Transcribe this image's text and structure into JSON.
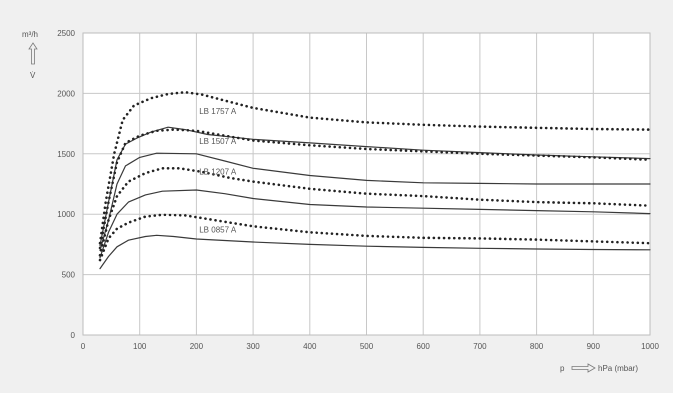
{
  "chart_data": {
    "type": "line",
    "xlim": [
      0,
      1000
    ],
    "ylim": [
      0,
      2500
    ],
    "x_ticks": [
      0,
      100,
      200,
      300,
      400,
      500,
      600,
      700,
      800,
      900,
      1000
    ],
    "y_ticks": [
      0,
      500,
      1000,
      1500,
      2000,
      2500
    ],
    "y_unit_label": "m³/h",
    "y_symbol": "V̇",
    "x_symbol": "p",
    "x_unit_label": "hPa (mbar)",
    "grid": true,
    "colors": {
      "solid": "#3a3a3a",
      "dotted": "#222222",
      "grid": "#c8c8c8",
      "plot_bg": "#ffffff"
    },
    "series": [
      {
        "name": "LB 1757 A",
        "style": "dotted",
        "points": [
          [
            30,
            760
          ],
          [
            40,
            1100
          ],
          [
            55,
            1500
          ],
          [
            70,
            1780
          ],
          [
            90,
            1900
          ],
          [
            120,
            1960
          ],
          [
            150,
            1995
          ],
          [
            180,
            2010
          ],
          [
            210,
            1990
          ],
          [
            250,
            1940
          ],
          [
            300,
            1880
          ],
          [
            400,
            1800
          ],
          [
            500,
            1760
          ],
          [
            600,
            1740
          ],
          [
            700,
            1725
          ],
          [
            800,
            1715
          ],
          [
            900,
            1705
          ],
          [
            1000,
            1700
          ]
        ]
      },
      {
        "name": "LB 1757 A",
        "style": "solid",
        "points": [
          [
            30,
            740
          ],
          [
            45,
            1100
          ],
          [
            60,
            1450
          ],
          [
            75,
            1580
          ],
          [
            95,
            1630
          ],
          [
            120,
            1680
          ],
          [
            150,
            1720
          ],
          [
            180,
            1700
          ],
          [
            220,
            1660
          ],
          [
            300,
            1620
          ],
          [
            400,
            1590
          ],
          [
            500,
            1560
          ],
          [
            600,
            1530
          ],
          [
            700,
            1510
          ],
          [
            800,
            1490
          ],
          [
            900,
            1475
          ],
          [
            1000,
            1460
          ]
        ]
      },
      {
        "name": "LB 1507 A",
        "style": "dotted",
        "points": [
          [
            30,
            720
          ],
          [
            45,
            1100
          ],
          [
            60,
            1430
          ],
          [
            75,
            1590
          ],
          [
            100,
            1650
          ],
          [
            130,
            1690
          ],
          [
            160,
            1700
          ],
          [
            200,
            1690
          ],
          [
            250,
            1650
          ],
          [
            300,
            1610
          ],
          [
            400,
            1570
          ],
          [
            500,
            1540
          ],
          [
            600,
            1520
          ],
          [
            700,
            1500
          ],
          [
            800,
            1485
          ],
          [
            900,
            1470
          ],
          [
            1000,
            1450
          ]
        ]
      },
      {
        "name": "LB 1507 A",
        "style": "solid",
        "points": [
          [
            30,
            700
          ],
          [
            45,
            950
          ],
          [
            60,
            1250
          ],
          [
            75,
            1400
          ],
          [
            100,
            1470
          ],
          [
            130,
            1505
          ],
          [
            200,
            1500
          ],
          [
            250,
            1440
          ],
          [
            300,
            1380
          ],
          [
            400,
            1320
          ],
          [
            500,
            1280
          ],
          [
            600,
            1260
          ],
          [
            700,
            1255
          ],
          [
            800,
            1250
          ],
          [
            900,
            1250
          ],
          [
            1000,
            1250
          ]
        ]
      },
      {
        "name": "LB 1207 A",
        "style": "dotted",
        "points": [
          [
            30,
            660
          ],
          [
            45,
            950
          ],
          [
            60,
            1150
          ],
          [
            80,
            1270
          ],
          [
            110,
            1340
          ],
          [
            140,
            1380
          ],
          [
            170,
            1380
          ],
          [
            210,
            1350
          ],
          [
            260,
            1300
          ],
          [
            300,
            1270
          ],
          [
            400,
            1210
          ],
          [
            500,
            1170
          ],
          [
            600,
            1150
          ],
          [
            700,
            1120
          ],
          [
            800,
            1100
          ],
          [
            900,
            1090
          ],
          [
            1000,
            1070
          ]
        ]
      },
      {
        "name": "LB 1207 A",
        "style": "solid",
        "points": [
          [
            30,
            640
          ],
          [
            45,
            850
          ],
          [
            60,
            1000
          ],
          [
            80,
            1100
          ],
          [
            110,
            1160
          ],
          [
            140,
            1190
          ],
          [
            200,
            1200
          ],
          [
            250,
            1170
          ],
          [
            300,
            1130
          ],
          [
            400,
            1080
          ],
          [
            500,
            1060
          ],
          [
            600,
            1050
          ],
          [
            700,
            1040
          ],
          [
            800,
            1030
          ],
          [
            900,
            1020
          ],
          [
            1000,
            1005
          ]
        ]
      },
      {
        "name": "LB 0857 A",
        "style": "dotted",
        "points": [
          [
            30,
            620
          ],
          [
            45,
            800
          ],
          [
            60,
            880
          ],
          [
            80,
            930
          ],
          [
            110,
            980
          ],
          [
            140,
            995
          ],
          [
            180,
            990
          ],
          [
            220,
            960
          ],
          [
            260,
            930
          ],
          [
            300,
            900
          ],
          [
            400,
            850
          ],
          [
            500,
            820
          ],
          [
            600,
            805
          ],
          [
            700,
            800
          ],
          [
            800,
            790
          ],
          [
            900,
            775
          ],
          [
            1000,
            760
          ]
        ]
      },
      {
        "name": "LB 0857 A",
        "style": "solid",
        "points": [
          [
            30,
            550
          ],
          [
            45,
            650
          ],
          [
            60,
            730
          ],
          [
            80,
            785
          ],
          [
            110,
            815
          ],
          [
            130,
            825
          ],
          [
            160,
            815
          ],
          [
            200,
            795
          ],
          [
            300,
            770
          ],
          [
            400,
            750
          ],
          [
            500,
            735
          ],
          [
            600,
            725
          ],
          [
            700,
            718
          ],
          [
            800,
            712
          ],
          [
            900,
            708
          ],
          [
            1000,
            705
          ]
        ]
      }
    ],
    "annotations": [
      {
        "text": "LB 1757 A",
        "x": 205,
        "y": 1830
      },
      {
        "text": "LB 1507 A",
        "x": 205,
        "y": 1580
      },
      {
        "text": "LB 1207 A",
        "x": 205,
        "y": 1330
      },
      {
        "text": "LB 0857 A",
        "x": 205,
        "y": 850
      }
    ]
  }
}
